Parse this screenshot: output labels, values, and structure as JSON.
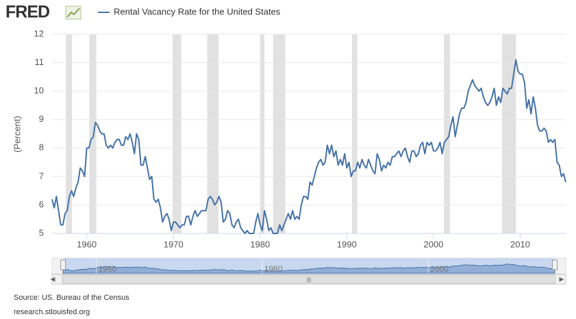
{
  "logo": "FRED",
  "chart_data": {
    "type": "line",
    "ylabel": "(Percent)",
    "source": "Source: US. Bureau of the Census",
    "site": "research.stlouisfed.org",
    "xlim": [
      1956,
      2015.25
    ],
    "ylim": [
      5,
      12
    ],
    "xticks": [
      1960,
      1970,
      1980,
      1990,
      2000,
      2010
    ],
    "yticks": [
      5,
      6,
      7,
      8,
      9,
      10,
      11,
      12
    ],
    "navigator_ticks": [
      1960,
      1980,
      2000
    ],
    "grid": true,
    "recessions": [
      [
        1957.6,
        1958.3
      ],
      [
        1960.3,
        1961.1
      ],
      [
        1969.9,
        1970.9
      ],
      [
        1973.9,
        1975.2
      ],
      [
        1980.0,
        1980.5
      ],
      [
        1981.5,
        1982.9
      ],
      [
        1990.6,
        1991.2
      ],
      [
        2001.2,
        2001.9
      ],
      [
        2007.9,
        2009.5
      ]
    ],
    "x": [
      1956,
      1956.25,
      1956.5,
      1956.75,
      1957,
      1957.25,
      1957.5,
      1957.75,
      1958,
      1958.25,
      1958.5,
      1958.75,
      1959,
      1959.25,
      1959.5,
      1959.75,
      1960,
      1960.25,
      1960.5,
      1960.75,
      1961,
      1961.25,
      1961.5,
      1961.75,
      1962,
      1962.25,
      1962.5,
      1962.75,
      1963,
      1963.25,
      1963.5,
      1963.75,
      1964,
      1964.25,
      1964.5,
      1964.75,
      1965,
      1965.25,
      1965.5,
      1965.75,
      1966,
      1966.25,
      1966.5,
      1966.75,
      1967,
      1967.25,
      1967.5,
      1967.75,
      1968,
      1968.25,
      1968.5,
      1968.75,
      1969,
      1969.25,
      1969.5,
      1969.75,
      1970,
      1970.25,
      1970.5,
      1970.75,
      1971,
      1971.25,
      1971.5,
      1971.75,
      1972,
      1972.25,
      1972.5,
      1972.75,
      1973,
      1973.25,
      1973.5,
      1973.75,
      1974,
      1974.25,
      1974.5,
      1974.75,
      1975,
      1975.25,
      1975.5,
      1975.75,
      1976,
      1976.25,
      1976.5,
      1976.75,
      1977,
      1977.25,
      1977.5,
      1977.75,
      1978,
      1978.25,
      1978.5,
      1978.75,
      1979,
      1979.25,
      1979.5,
      1979.75,
      1980,
      1980.25,
      1980.5,
      1980.75,
      1981,
      1981.25,
      1981.5,
      1981.75,
      1982,
      1982.25,
      1982.5,
      1982.75,
      1983,
      1983.25,
      1983.5,
      1983.75,
      1984,
      1984.25,
      1984.5,
      1984.75,
      1985,
      1985.25,
      1985.5,
      1985.75,
      1986,
      1986.25,
      1986.5,
      1986.75,
      1987,
      1987.25,
      1987.5,
      1987.75,
      1988,
      1988.25,
      1988.5,
      1988.75,
      1989,
      1989.25,
      1989.5,
      1989.75,
      1990,
      1990.25,
      1990.5,
      1990.75,
      1991,
      1991.25,
      1991.5,
      1991.75,
      1992,
      1992.25,
      1992.5,
      1992.75,
      1993,
      1993.25,
      1993.5,
      1993.75,
      1994,
      1994.25,
      1994.5,
      1994.75,
      1995,
      1995.25,
      1995.5,
      1995.75,
      1996,
      1996.25,
      1996.5,
      1996.75,
      1997,
      1997.25,
      1997.5,
      1997.75,
      1998,
      1998.25,
      1998.5,
      1998.75,
      1999,
      1999.25,
      1999.5,
      1999.75,
      2000,
      2000.25,
      2000.5,
      2000.75,
      2001,
      2001.25,
      2001.5,
      2001.75,
      2002,
      2002.25,
      2002.5,
      2002.75,
      2003,
      2003.25,
      2003.5,
      2003.75,
      2004,
      2004.25,
      2004.5,
      2004.75,
      2005,
      2005.25,
      2005.5,
      2005.75,
      2006,
      2006.25,
      2006.5,
      2006.75,
      2007,
      2007.25,
      2007.5,
      2007.75,
      2008,
      2008.25,
      2008.5,
      2008.75,
      2009,
      2009.25,
      2009.5,
      2009.75,
      2010,
      2010.25,
      2010.5,
      2010.75,
      2011,
      2011.25,
      2011.5,
      2011.75,
      2012,
      2012.25,
      2012.5,
      2012.75,
      2013,
      2013.25,
      2013.5,
      2013.75,
      2014,
      2014.25,
      2014.5,
      2014.75,
      2015,
      2015.25
    ],
    "series": [
      {
        "name": "Rental Vacancy Rate for the United States",
        "color": "#4572a7",
        "values": [
          6.2,
          5.9,
          6.3,
          5.8,
          5.3,
          5.3,
          5.7,
          5.8,
          6.3,
          6.5,
          6.3,
          6.6,
          6.8,
          7.3,
          7.2,
          7.0,
          8.0,
          8.0,
          8.3,
          8.4,
          8.9,
          8.8,
          8.6,
          8.5,
          8.5,
          8.1,
          8.0,
          8.1,
          8.0,
          8.2,
          8.3,
          8.3,
          8.1,
          8.1,
          8.4,
          8.3,
          8.5,
          8.2,
          7.8,
          8.5,
          8.3,
          7.4,
          7.4,
          7.7,
          7.3,
          6.9,
          7.0,
          6.2,
          6.1,
          6.2,
          5.9,
          5.4,
          5.6,
          5.7,
          5.5,
          5.1,
          5.4,
          5.4,
          5.3,
          5.2,
          5.3,
          5.3,
          5.6,
          5.6,
          5.3,
          5.6,
          5.8,
          5.6,
          5.7,
          5.8,
          5.8,
          5.8,
          6.2,
          6.3,
          6.2,
          6.0,
          6.1,
          6.3,
          6.1,
          5.4,
          5.5,
          5.8,
          5.7,
          5.3,
          5.2,
          5.4,
          5.5,
          5.2,
          5.1,
          5.0,
          5.1,
          5.0,
          5.0,
          5.0,
          5.4,
          5.7,
          5.3,
          5.1,
          5.8,
          5.5,
          5.1,
          5.2,
          5.0,
          5.0,
          5.0,
          5.3,
          5.1,
          5.3,
          5.5,
          5.7,
          5.5,
          5.8,
          5.5,
          5.6,
          5.5,
          6.0,
          6.3,
          6.3,
          6.2,
          6.8,
          6.7,
          7.0,
          7.3,
          7.5,
          7.6,
          7.4,
          7.5,
          8.1,
          7.8,
          8.1,
          7.7,
          7.9,
          7.4,
          7.6,
          7.4,
          7.8,
          7.3,
          7.5,
          7.0,
          7.2,
          7.2,
          7.5,
          7.3,
          7.6,
          7.4,
          7.3,
          7.6,
          7.4,
          7.2,
          7.1,
          7.8,
          7.6,
          7.2,
          7.4,
          7.3,
          7.5,
          7.4,
          7.7,
          7.7,
          7.8,
          7.9,
          7.7,
          7.9,
          8.0,
          7.7,
          7.5,
          7.9,
          7.9,
          7.7,
          7.8,
          8.1,
          8.2,
          7.8,
          8.2,
          8.1,
          8.2,
          7.9,
          7.9,
          8.0,
          8.2,
          7.8,
          8.2,
          8.3,
          8.4,
          8.8,
          9.1,
          8.4,
          8.8,
          9.2,
          9.4,
          9.4,
          9.6,
          10.0,
          10.2,
          10.4,
          10.2,
          10.1,
          10.0,
          10.1,
          9.8,
          9.6,
          9.5,
          9.6,
          9.8,
          10.1,
          9.5,
          9.8,
          9.6,
          10.1,
          10.0,
          9.9,
          10.1,
          10.1,
          10.6,
          11.1,
          10.7,
          10.6,
          10.6,
          10.3,
          9.4,
          9.7,
          9.2,
          9.8,
          9.4,
          8.8,
          8.6,
          8.6,
          8.7,
          8.6,
          8.2,
          8.3,
          8.2,
          8.3,
          7.5,
          7.4,
          7.0,
          7.1,
          6.8
        ]
      }
    ]
  }
}
